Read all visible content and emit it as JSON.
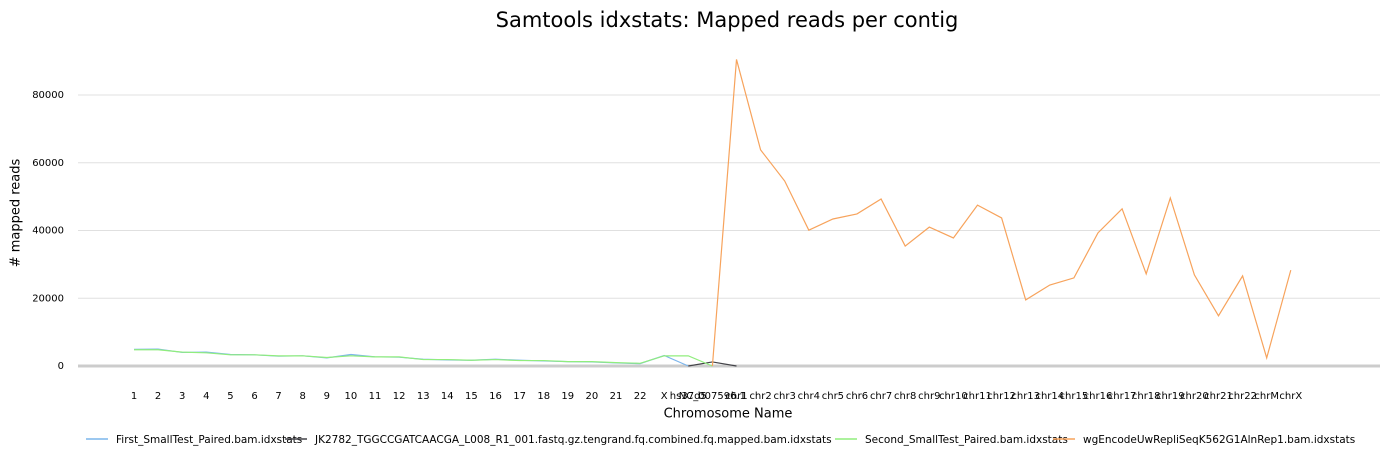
{
  "chart_data": {
    "type": "line",
    "title": "Samtools idxstats: Mapped reads per contig",
    "x_label": "Chromosome Name",
    "y_label": "# mapped reads",
    "categories": [
      "1",
      "2",
      "3",
      "4",
      "5",
      "6",
      "7",
      "8",
      "9",
      "10",
      "11",
      "12",
      "13",
      "14",
      "15",
      "16",
      "17",
      "18",
      "19",
      "20",
      "21",
      "22",
      "X",
      "hs37d5",
      "NC_007596.1",
      "chr1",
      "chr2",
      "chr3",
      "chr4",
      "chr5",
      "chr6",
      "chr7",
      "chr8",
      "chr9",
      "chr10",
      "chr11",
      "chr12",
      "chr13",
      "chr14",
      "chr15",
      "chr16",
      "chr17",
      "chr18",
      "chr19",
      "chr20",
      "chr21",
      "chr22",
      "chrM",
      "chrX"
    ],
    "series": [
      {
        "name": "First_SmallTest_Paired.bam.idxstats",
        "color": "#7cb5ec",
        "values": [
          4900,
          5000,
          4000,
          4100,
          3400,
          3300,
          2900,
          3000,
          2400,
          3400,
          2700,
          2600,
          2000,
          1800,
          1700,
          2000,
          1700,
          1500,
          1300,
          1200,
          900,
          700,
          3100,
          0,
          null,
          null,
          null,
          null,
          null,
          null,
          null,
          null,
          null,
          null,
          null,
          null,
          null,
          null,
          null,
          null,
          null,
          null,
          null,
          null,
          null,
          null,
          null,
          null,
          null
        ]
      },
      {
        "name": "JK2782_TGGCCGATCAACGA_L008_R1_001.fastq.gz.tengrand.fq.combined.fq.mapped.bam.idxstats",
        "color": "#434348",
        "values": [
          null,
          null,
          null,
          null,
          null,
          null,
          null,
          null,
          null,
          null,
          null,
          null,
          null,
          null,
          null,
          null,
          null,
          null,
          null,
          null,
          null,
          null,
          null,
          0,
          1200,
          0,
          null,
          null,
          null,
          null,
          null,
          null,
          null,
          null,
          null,
          null,
          null,
          null,
          null,
          null,
          null,
          null,
          null,
          null,
          null,
          null,
          null,
          null,
          null
        ]
      },
      {
        "name": "Second_SmallTest_Paired.bam.idxstats",
        "color": "#90ed7d",
        "values": [
          4800,
          4800,
          4100,
          3900,
          3300,
          3300,
          3000,
          3000,
          2500,
          3000,
          2700,
          2700,
          1900,
          1900,
          1700,
          1900,
          1600,
          1600,
          1300,
          1300,
          1000,
          800,
          3000,
          3000,
          0,
          null,
          null,
          null,
          null,
          null,
          null,
          null,
          null,
          null,
          null,
          null,
          null,
          null,
          null,
          null,
          null,
          null,
          null,
          null,
          null,
          null,
          null,
          null,
          null
        ]
      },
      {
        "name": "wgEncodeUwRepliSeqK562G1AlnRep1.bam.idxstats",
        "color": "#f7a35c",
        "values": [
          null,
          null,
          null,
          null,
          null,
          null,
          null,
          null,
          null,
          null,
          null,
          null,
          null,
          null,
          null,
          null,
          null,
          null,
          null,
          null,
          null,
          null,
          null,
          null,
          0,
          90500,
          63800,
          54600,
          40100,
          43400,
          44900,
          49300,
          35400,
          41000,
          37800,
          47500,
          43700,
          19500,
          23900,
          26000,
          39300,
          46400,
          27200,
          49600,
          26900,
          14800,
          26600,
          2400,
          28300
        ]
      }
    ],
    "ylim": [
      0,
      92000
    ],
    "yticks": [
      0,
      20000,
      40000,
      60000,
      80000
    ],
    "grid": true,
    "legend": "bottom"
  }
}
